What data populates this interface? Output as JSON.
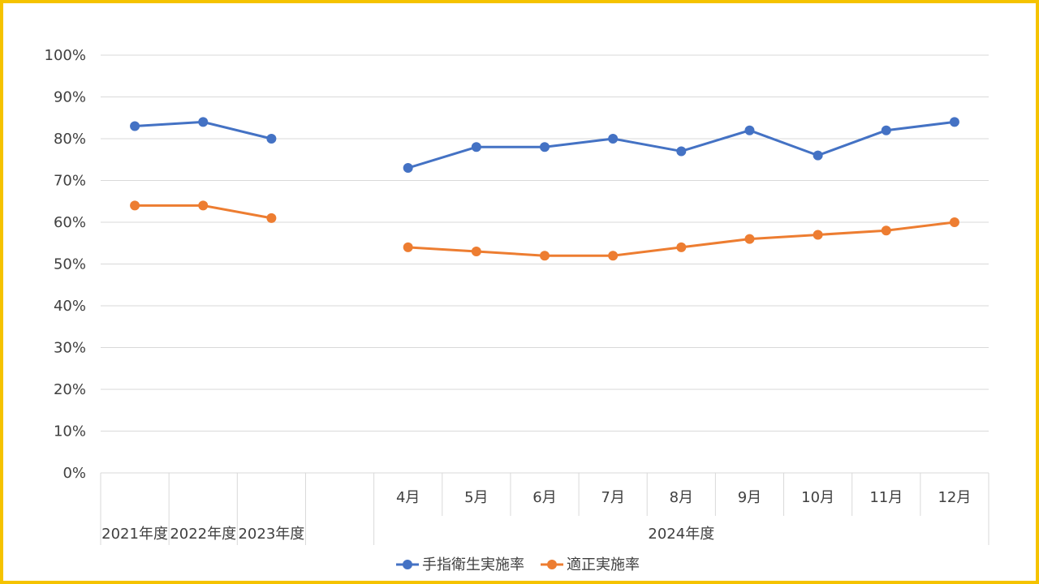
{
  "chart_data": {
    "type": "line",
    "title": "",
    "xlabel": "",
    "ylabel": "",
    "ylim": [
      0,
      100
    ],
    "y_ticks": [
      "0%",
      "10%",
      "20%",
      "30%",
      "40%",
      "50%",
      "60%",
      "70%",
      "80%",
      "90%",
      "100%"
    ],
    "categories": [
      "2021年度",
      "2022年度",
      "2023年度",
      "",
      "4月",
      "5月",
      "6月",
      "7月",
      "8月",
      "9月",
      "10月",
      "11月",
      "12月"
    ],
    "groups": [
      {
        "label": "2021年度",
        "start": 0,
        "end": 0
      },
      {
        "label": "2022年度",
        "start": 1,
        "end": 1
      },
      {
        "label": "2023年度",
        "start": 2,
        "end": 2
      },
      {
        "label": "",
        "start": 3,
        "end": 3
      },
      {
        "label": "2024年度",
        "start": 4,
        "end": 12
      }
    ],
    "series": [
      {
        "name": "手指衛生実施率",
        "color": "#4472c4",
        "values": [
          83,
          84,
          80,
          null,
          73,
          78,
          78,
          80,
          77,
          82,
          76,
          82,
          84
        ]
      },
      {
        "name": "適正実施率",
        "color": "#ed7d31",
        "values": [
          64,
          64,
          61,
          null,
          54,
          53,
          52,
          52,
          54,
          56,
          57,
          58,
          60
        ]
      }
    ],
    "grid": true,
    "legend": "bottom-center"
  },
  "colors": {
    "frame": "#f5c300",
    "grid": "#d9d9d9",
    "text": "#404040"
  }
}
